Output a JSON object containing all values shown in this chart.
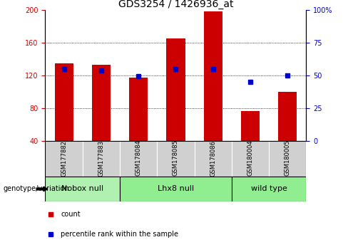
{
  "title": "GDS3254 / 1426936_at",
  "samples": [
    "GSM177882",
    "GSM177883",
    "GSM178084",
    "GSM178085",
    "GSM178086",
    "GSM180004",
    "GSM180005"
  ],
  "red_bars": [
    135,
    133,
    118,
    165,
    198,
    77,
    100
  ],
  "blue_squares_left": [
    128,
    126,
    119,
    128,
    128,
    112,
    120
  ],
  "ylim_left": [
    40,
    200
  ],
  "ylim_right": [
    0,
    100
  ],
  "yticks_left": [
    40,
    80,
    120,
    160,
    200
  ],
  "yticks_right": [
    0,
    25,
    50,
    75,
    100
  ],
  "grid_lines": [
    80,
    120,
    160
  ],
  "groups": [
    {
      "label": "Nobox null",
      "start": 0,
      "end": 1,
      "color": "#b0f0b0"
    },
    {
      "label": "Lhx8 null",
      "start": 2,
      "end": 4,
      "color": "#90ee90"
    },
    {
      "label": "wild type",
      "start": 5,
      "end": 6,
      "color": "#90ee90"
    }
  ],
  "sample_box_color": "#d0d0d0",
  "bar_color": "#cc0000",
  "square_color": "#0000cc",
  "title_fontsize": 10,
  "tick_fontsize": 7,
  "sample_fontsize": 6,
  "group_fontsize": 8,
  "legend_fontsize": 7,
  "genotype_fontsize": 7
}
